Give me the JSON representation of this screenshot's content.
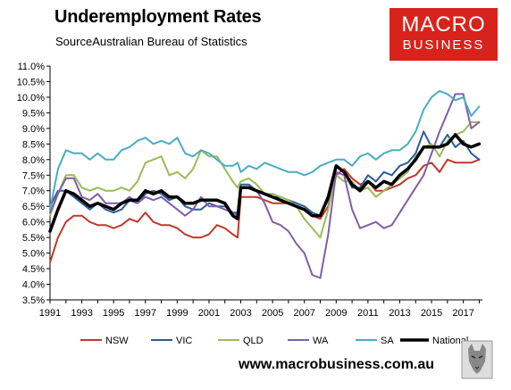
{
  "title": "Underemployment Rates",
  "subtitle": "SourceAustralian Bureau of Statistics",
  "logo": {
    "line1": "MACRO",
    "line2": "BUSINESS",
    "color": "#d8231c"
  },
  "website": "www.macrobusiness.com.au",
  "chart_data": {
    "type": "line",
    "title": "Underemployment Rates",
    "ylim": [
      3.5,
      11.0
    ],
    "xlim": [
      1991.0,
      2018.2
    ],
    "y_ticks": [
      "3.5%",
      "4.0%",
      "4.5%",
      "5.0%",
      "5.5%",
      "6.0%",
      "6.5%",
      "7.0%",
      "7.5%",
      "8.0%",
      "8.5%",
      "9.0%",
      "9.5%",
      "10.0%",
      "10.5%",
      "11.0%"
    ],
    "x_ticks": [
      "1991",
      "1993",
      "1995",
      "1997",
      "1999",
      "2001",
      "2003",
      "2005",
      "2007",
      "2009",
      "2011",
      "2013",
      "2015",
      "2017"
    ],
    "grid": false,
    "legend_position": "bottom",
    "x": [
      1991.0,
      1991.5,
      1992.0,
      1992.5,
      1993.0,
      1993.5,
      1994.0,
      1994.5,
      1995.0,
      1995.5,
      1996.0,
      1996.5,
      1997.0,
      1997.5,
      1998.0,
      1998.5,
      1999.0,
      1999.5,
      2000.0,
      2000.5,
      2001.0,
      2001.5,
      2002.0,
      2002.5,
      2002.8,
      2003.0,
      2003.5,
      2004.0,
      2004.5,
      2005.0,
      2005.5,
      2006.0,
      2006.5,
      2007.0,
      2007.5,
      2008.0,
      2008.5,
      2009.0,
      2009.5,
      2010.0,
      2010.5,
      2011.0,
      2011.5,
      2012.0,
      2012.5,
      2013.0,
      2013.5,
      2014.0,
      2014.5,
      2015.0,
      2015.5,
      2016.0,
      2016.5,
      2017.0,
      2017.5,
      2018.0
    ],
    "series": [
      {
        "name": "NSW",
        "color": "#c0392b",
        "width": 2,
        "values": [
          4.7,
          5.5,
          6.0,
          6.2,
          6.2,
          6.0,
          5.9,
          5.9,
          5.8,
          5.9,
          6.1,
          6.0,
          6.3,
          6.0,
          5.9,
          5.9,
          5.8,
          5.6,
          5.5,
          5.5,
          5.6,
          5.9,
          5.8,
          5.6,
          5.5,
          6.8,
          6.8,
          6.8,
          6.7,
          6.6,
          6.6,
          6.6,
          6.5,
          6.4,
          6.2,
          6.1,
          6.5,
          7.5,
          7.7,
          7.4,
          7.2,
          7.3,
          7.0,
          7.0,
          7.1,
          7.2,
          7.4,
          7.5,
          7.8,
          7.9,
          7.6,
          8.0,
          7.9,
          7.9,
          7.9,
          8.0
        ]
      },
      {
        "name": "VIC",
        "color": "#2e5c99",
        "width": 2,
        "values": [
          6.5,
          7.0,
          7.0,
          6.8,
          6.6,
          6.4,
          6.6,
          6.4,
          6.3,
          6.4,
          6.7,
          6.6,
          6.9,
          7.0,
          6.9,
          6.7,
          6.8,
          6.5,
          6.4,
          6.4,
          6.6,
          6.5,
          6.5,
          6.3,
          6.3,
          7.2,
          7.2,
          7.0,
          6.9,
          6.8,
          6.8,
          6.7,
          6.6,
          6.5,
          6.3,
          6.2,
          6.7,
          7.8,
          7.6,
          7.1,
          7.1,
          7.5,
          7.3,
          7.6,
          7.5,
          7.8,
          7.9,
          8.2,
          8.9,
          8.4,
          8.4,
          8.8,
          8.4,
          8.6,
          8.2,
          8.0
        ]
      },
      {
        "name": "QLD",
        "color": "#9bbb59",
        "width": 2,
        "values": [
          6.2,
          6.9,
          7.5,
          7.5,
          7.1,
          7.0,
          7.1,
          7.0,
          7.0,
          7.1,
          7.0,
          7.3,
          7.9,
          8.0,
          8.1,
          7.5,
          7.6,
          7.4,
          7.7,
          8.3,
          8.1,
          8.1,
          7.7,
          7.3,
          7.1,
          7.3,
          7.4,
          7.2,
          6.9,
          6.9,
          6.8,
          6.7,
          6.5,
          6.1,
          5.8,
          5.5,
          6.4,
          7.5,
          7.3,
          7.3,
          7.0,
          7.1,
          6.8,
          7.0,
          7.2,
          7.4,
          7.6,
          8.1,
          8.4,
          8.5,
          8.1,
          8.6,
          8.8,
          8.9,
          9.2,
          9.2
        ]
      },
      {
        "name": "WA",
        "color": "#7f5fa8",
        "width": 2,
        "values": [
          6.3,
          6.9,
          7.4,
          7.4,
          6.8,
          6.7,
          6.9,
          6.6,
          6.6,
          6.6,
          6.8,
          6.6,
          6.8,
          6.7,
          6.8,
          6.6,
          6.4,
          6.2,
          6.4,
          6.8,
          6.5,
          6.5,
          6.4,
          6.3,
          6.2,
          7.1,
          7.1,
          7.0,
          6.6,
          6.0,
          5.9,
          5.7,
          5.3,
          5.0,
          4.3,
          4.2,
          5.6,
          7.6,
          7.5,
          6.4,
          5.8,
          5.9,
          6.0,
          5.8,
          5.9,
          6.3,
          6.7,
          7.1,
          7.5,
          8.2,
          8.9,
          9.5,
          10.1,
          10.1,
          9.0,
          9.2
        ]
      },
      {
        "name": "SA",
        "color": "#4aacc5",
        "width": 2,
        "values": [
          6.4,
          7.7,
          8.3,
          8.2,
          8.2,
          8.0,
          8.2,
          8.0,
          8.0,
          8.3,
          8.4,
          8.6,
          8.7,
          8.5,
          8.6,
          8.5,
          8.7,
          8.2,
          8.1,
          8.3,
          8.2,
          8.0,
          7.8,
          7.8,
          7.9,
          7.6,
          7.8,
          7.7,
          7.9,
          7.8,
          7.7,
          7.6,
          7.6,
          7.5,
          7.6,
          7.8,
          7.9,
          8.0,
          8.0,
          7.8,
          8.1,
          8.2,
          8.0,
          8.2,
          8.3,
          8.3,
          8.5,
          8.9,
          9.6,
          10.0,
          10.2,
          10.1,
          9.9,
          10.0,
          9.4,
          9.7
        ]
      },
      {
        "name": "National",
        "color": "#000000",
        "width": 3.5,
        "values": [
          5.7,
          6.4,
          7.0,
          6.9,
          6.7,
          6.5,
          6.6,
          6.5,
          6.4,
          6.6,
          6.7,
          6.7,
          7.0,
          6.9,
          7.0,
          6.8,
          6.8,
          6.6,
          6.6,
          6.7,
          6.7,
          6.7,
          6.6,
          6.2,
          6.1,
          7.1,
          7.1,
          7.0,
          6.9,
          6.8,
          6.7,
          6.6,
          6.5,
          6.4,
          6.2,
          6.2,
          6.8,
          7.8,
          7.6,
          7.2,
          7.0,
          7.3,
          7.1,
          7.3,
          7.2,
          7.5,
          7.7,
          8.0,
          8.4,
          8.4,
          8.4,
          8.5,
          8.8,
          8.5,
          8.4,
          8.5
        ]
      }
    ]
  }
}
